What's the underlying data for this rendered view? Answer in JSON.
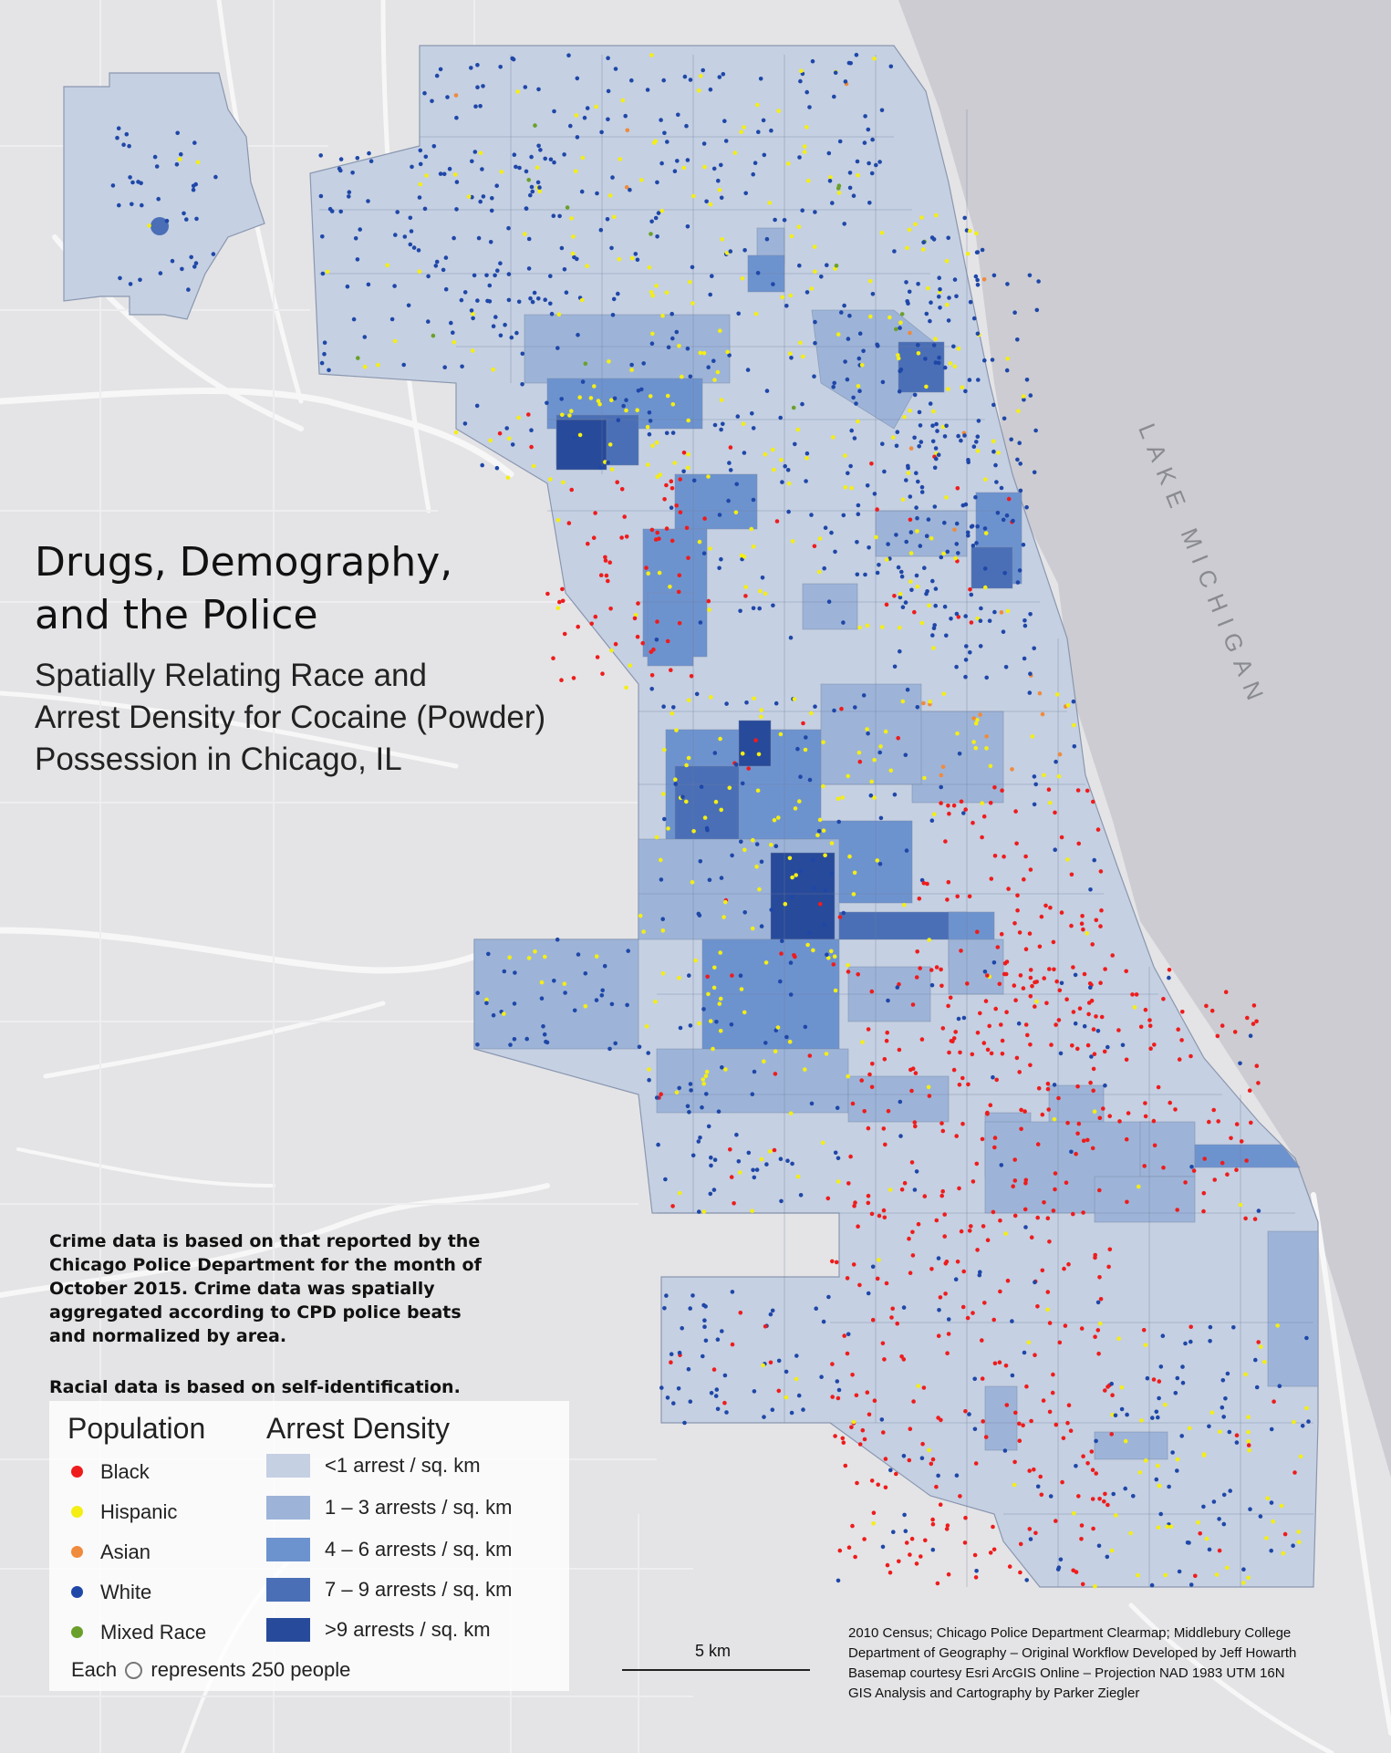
{
  "title_lines": [
    "Drugs, Demography,",
    "and the Police"
  ],
  "subtitle_lines": [
    "Spatially Relating Race and",
    "Arrest Density for Cocaine (Powder)",
    "Possession in Chicago, IL"
  ],
  "lake_label": "LAKE MICHIGAN",
  "notes": {
    "crime_lines": [
      "Crime data is based on that reported by the",
      "Chicago Police Department for the month of",
      "October 2015. Crime data was spatially",
      "aggregated according to CPD police beats",
      "and normalized by area."
    ],
    "racial": "Racial data is based on self-identification."
  },
  "legend": {
    "population_title": "Population",
    "arrest_title": "Arrest Density",
    "population": [
      {
        "label": "Black",
        "color": "#ee1c1c"
      },
      {
        "label": "Hispanic",
        "color": "#f4ee14"
      },
      {
        "label": "Asian",
        "color": "#f08a3c"
      },
      {
        "label": "White",
        "color": "#1f47a8"
      },
      {
        "label": "Mixed Race",
        "color": "#6aa02a"
      }
    ],
    "arrest": [
      {
        "label": "<1 arrest / sq. km",
        "color": "#c5d0e2"
      },
      {
        "label": "1 – 3 arrests / sq. km",
        "color": "#9db4d8"
      },
      {
        "label": "4 – 6 arrests / sq. km",
        "color": "#6d93cf"
      },
      {
        "label": "7 – 9 arrests / sq. km",
        "color": "#4a6fb6"
      },
      {
        "label": ">9 arrests / sq. km",
        "color": "#284a9a"
      }
    ],
    "each_prefix": "Each",
    "each_suffix": "represents 250 people"
  },
  "scale_label": "5 km",
  "credits": [
    "2010 Census; Chicago Police Department Clearmap; Middlebury College",
    "Department of Geography – Original Workflow Developed by Jeff Howarth",
    "Basemap courtesy Esri ArcGIS Online – Projection NAD 1983 UTM 16N",
    "GIS Analysis and Cartography by Parker Ziegler"
  ],
  "colors": {
    "background": "#e4e4e6",
    "lake": "#ccccd2",
    "roads": "#f7f7f8",
    "city_base": "#c5d0e2"
  }
}
